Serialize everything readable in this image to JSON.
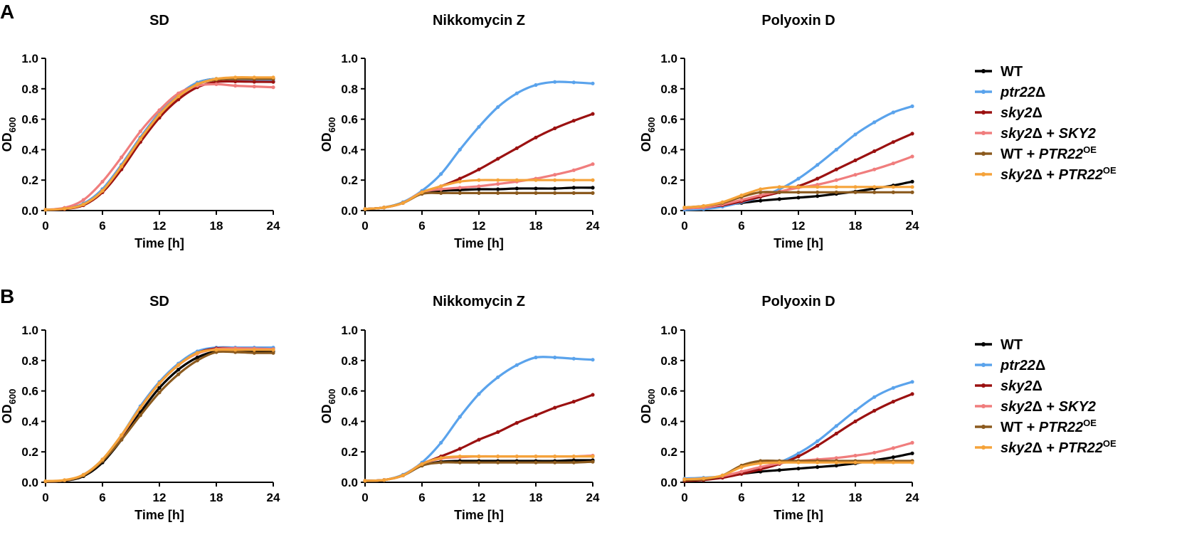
{
  "figure": {
    "panels": [
      {
        "label": "A",
        "legend": [
          {
            "prefix": "WT",
            "italic": "",
            "suffix": "",
            "sup": "",
            "color": "#000000"
          },
          {
            "prefix": "",
            "italic": "ptr22",
            "suffix": "Δ",
            "sup": "",
            "color": "#5aa3ec"
          },
          {
            "prefix": "",
            "italic": "sky2",
            "suffix": "Δ",
            "sup": "",
            "color": "#9b1111"
          },
          {
            "prefix": "",
            "italic": "sky2",
            "suffix": "Δ + ",
            "italic2": "SKY2",
            "sup": "",
            "color": "#f07d7d"
          },
          {
            "prefix": "WT + ",
            "italic": "PTR22",
            "suffix": "",
            "sup": "OE",
            "color": "#8b5a1e"
          },
          {
            "prefix": "",
            "italic": "sky2",
            "suffix": "Δ + ",
            "italic2": "PTR22",
            "sup": "OE",
            "color": "#f5a33a"
          }
        ]
      },
      {
        "label": "B",
        "legend": [
          {
            "prefix": "WT",
            "italic": "",
            "suffix": "",
            "sup": "",
            "color": "#000000"
          },
          {
            "prefix": "",
            "italic": "ptr22",
            "suffix": "Δ",
            "sup": "",
            "color": "#5aa3ec"
          },
          {
            "prefix": "",
            "italic": "sky2",
            "suffix": "Δ",
            "sup": "",
            "color": "#9b1111"
          },
          {
            "prefix": "",
            "italic": "sky2",
            "suffix": "Δ + ",
            "italic2": "SKY2",
            "sup": "",
            "color": "#f07d7d"
          },
          {
            "prefix": "WT + ",
            "italic": "PTR22",
            "suffix": "",
            "sup": "OE",
            "color": "#8b5a1e"
          },
          {
            "prefix": "",
            "italic": "sky2",
            "suffix": "Δ + ",
            "italic2": "PTR22",
            "sup": "OE",
            "color": "#f5a33a"
          }
        ]
      }
    ]
  },
  "chart_data": [
    {
      "panel": "A",
      "type": "line",
      "title": "SD",
      "xlabel": "Time [h]",
      "ylabel": "OD",
      "ylabel_sub": "600",
      "xlim": [
        0,
        24
      ],
      "ylim": [
        0,
        1.0
      ],
      "xticks": [
        "0",
        "6",
        "12",
        "18",
        "24"
      ],
      "yticks": [
        "0.0",
        "0.2",
        "0.4",
        "0.6",
        "0.8",
        "1.0"
      ],
      "x": [
        0,
        2,
        4,
        6,
        8,
        10,
        12,
        14,
        16,
        18,
        20,
        22,
        24
      ],
      "series": [
        {
          "name": "WT",
          "values": [
            0.005,
            0.012,
            0.045,
            0.14,
            0.3,
            0.48,
            0.64,
            0.76,
            0.84,
            0.865,
            0.86,
            0.855,
            0.85
          ]
        },
        {
          "name": "ptr22Δ",
          "values": [
            0.005,
            0.012,
            0.045,
            0.14,
            0.3,
            0.48,
            0.64,
            0.76,
            0.84,
            0.865,
            0.86,
            0.855,
            0.85
          ]
        },
        {
          "name": "sky2Δ",
          "values": [
            0.005,
            0.01,
            0.035,
            0.12,
            0.27,
            0.45,
            0.61,
            0.73,
            0.81,
            0.845,
            0.848,
            0.846,
            0.845
          ]
        },
        {
          "name": "sky2Δ + SKY2",
          "values": [
            0.005,
            0.018,
            0.07,
            0.19,
            0.35,
            0.52,
            0.66,
            0.77,
            0.82,
            0.83,
            0.82,
            0.815,
            0.81
          ]
        },
        {
          "name": "WT + PTR22OE",
          "values": [
            0.005,
            0.012,
            0.04,
            0.13,
            0.29,
            0.47,
            0.63,
            0.75,
            0.83,
            0.86,
            0.865,
            0.865,
            0.865
          ]
        },
        {
          "name": "sky2Δ + PTR22OE",
          "values": [
            0.005,
            0.012,
            0.04,
            0.13,
            0.29,
            0.47,
            0.63,
            0.75,
            0.83,
            0.865,
            0.875,
            0.875,
            0.875
          ]
        }
      ]
    },
    {
      "panel": "A",
      "type": "line",
      "title": "Nikkomycin Z",
      "xlabel": "Time [h]",
      "ylabel": "OD",
      "ylabel_sub": "600",
      "xlim": [
        0,
        24
      ],
      "ylim": [
        0,
        1.0
      ],
      "xticks": [
        "0",
        "6",
        "12",
        "18",
        "24"
      ],
      "yticks": [
        "0.0",
        "0.2",
        "0.4",
        "0.6",
        "0.8",
        "1.0"
      ],
      "x": [
        0,
        2,
        4,
        6,
        8,
        10,
        12,
        14,
        16,
        18,
        20,
        22,
        24
      ],
      "series": [
        {
          "name": "WT",
          "values": [
            0.01,
            0.02,
            0.05,
            0.115,
            0.13,
            0.135,
            0.14,
            0.14,
            0.145,
            0.145,
            0.145,
            0.15,
            0.15
          ]
        },
        {
          "name": "ptr22Δ",
          "values": [
            0.01,
            0.02,
            0.055,
            0.13,
            0.24,
            0.4,
            0.55,
            0.68,
            0.77,
            0.825,
            0.845,
            0.842,
            0.835
          ]
        },
        {
          "name": "sky2Δ",
          "values": [
            0.01,
            0.02,
            0.05,
            0.12,
            0.16,
            0.21,
            0.27,
            0.34,
            0.41,
            0.48,
            0.54,
            0.59,
            0.635
          ]
        },
        {
          "name": "sky2Δ + SKY2",
          "values": [
            0.01,
            0.02,
            0.05,
            0.12,
            0.14,
            0.15,
            0.16,
            0.175,
            0.19,
            0.21,
            0.235,
            0.265,
            0.305
          ]
        },
        {
          "name": "WT + PTR22OE",
          "values": [
            0.01,
            0.02,
            0.05,
            0.11,
            0.115,
            0.115,
            0.115,
            0.115,
            0.115,
            0.115,
            0.115,
            0.115,
            0.115
          ]
        },
        {
          "name": "sky2Δ + PTR22OE",
          "values": [
            0.01,
            0.02,
            0.05,
            0.12,
            0.16,
            0.19,
            0.2,
            0.2,
            0.2,
            0.2,
            0.2,
            0.2,
            0.2
          ]
        }
      ]
    },
    {
      "panel": "A",
      "type": "line",
      "title": "Polyoxin D",
      "xlabel": "Time [h]",
      "ylabel": "OD",
      "ylabel_sub": "600",
      "xlim": [
        0,
        24
      ],
      "ylim": [
        0,
        1.0
      ],
      "xticks": [
        "0",
        "6",
        "12",
        "18",
        "24"
      ],
      "yticks": [
        "0.0",
        "0.2",
        "0.4",
        "0.6",
        "0.8",
        "1.0"
      ],
      "x": [
        0,
        2,
        4,
        6,
        8,
        10,
        12,
        14,
        16,
        18,
        20,
        22,
        24
      ],
      "series": [
        {
          "name": "WT",
          "values": [
            0.02,
            0.025,
            0.035,
            0.05,
            0.065,
            0.075,
            0.085,
            0.095,
            0.11,
            0.125,
            0.145,
            0.165,
            0.19
          ]
        },
        {
          "name": "ptr22Δ",
          "values": [
            0.005,
            0.01,
            0.025,
            0.055,
            0.09,
            0.14,
            0.21,
            0.3,
            0.4,
            0.5,
            0.58,
            0.645,
            0.685
          ]
        },
        {
          "name": "sky2Δ",
          "values": [
            0.015,
            0.02,
            0.035,
            0.06,
            0.09,
            0.12,
            0.16,
            0.21,
            0.27,
            0.33,
            0.39,
            0.45,
            0.505
          ]
        },
        {
          "name": "sky2Δ + SKY2",
          "values": [
            0.015,
            0.02,
            0.04,
            0.07,
            0.1,
            0.125,
            0.15,
            0.17,
            0.2,
            0.235,
            0.27,
            0.31,
            0.355
          ]
        },
        {
          "name": "WT + PTR22OE",
          "values": [
            0.02,
            0.03,
            0.05,
            0.09,
            0.12,
            0.12,
            0.12,
            0.12,
            0.12,
            0.12,
            0.12,
            0.12,
            0.12
          ]
        },
        {
          "name": "sky2Δ + PTR22OE",
          "values": [
            0.02,
            0.03,
            0.055,
            0.1,
            0.14,
            0.155,
            0.155,
            0.155,
            0.155,
            0.155,
            0.155,
            0.155,
            0.155
          ]
        }
      ]
    },
    {
      "panel": "B",
      "type": "line",
      "title": "SD",
      "xlabel": "Time [h]",
      "ylabel": "OD",
      "ylabel_sub": "600",
      "xlim": [
        0,
        24
      ],
      "ylim": [
        0,
        1.0
      ],
      "xticks": [
        "0",
        "6",
        "12",
        "18",
        "24"
      ],
      "yticks": [
        "0.0",
        "0.2",
        "0.4",
        "0.6",
        "0.8",
        "1.0"
      ],
      "x": [
        0,
        2,
        4,
        6,
        8,
        10,
        12,
        14,
        16,
        18,
        20,
        22,
        24
      ],
      "series": [
        {
          "name": "WT",
          "values": [
            0.005,
            0.01,
            0.04,
            0.13,
            0.28,
            0.46,
            0.62,
            0.74,
            0.82,
            0.86,
            0.86,
            0.86,
            0.86
          ]
        },
        {
          "name": "ptr22Δ",
          "values": [
            0.005,
            0.012,
            0.05,
            0.15,
            0.31,
            0.5,
            0.66,
            0.78,
            0.86,
            0.885,
            0.885,
            0.885,
            0.885
          ]
        },
        {
          "name": "sky2Δ",
          "values": [
            0.005,
            0.012,
            0.048,
            0.148,
            0.305,
            0.49,
            0.65,
            0.77,
            0.85,
            0.88,
            0.88,
            0.878,
            0.875
          ]
        },
        {
          "name": "sky2Δ + SKY2",
          "values": [
            0.005,
            0.012,
            0.048,
            0.148,
            0.305,
            0.49,
            0.65,
            0.77,
            0.845,
            0.875,
            0.88,
            0.878,
            0.875
          ]
        },
        {
          "name": "WT + PTR22OE",
          "values": [
            0.005,
            0.012,
            0.045,
            0.14,
            0.28,
            0.44,
            0.59,
            0.71,
            0.8,
            0.855,
            0.855,
            0.85,
            0.85
          ]
        },
        {
          "name": "sky2Δ + PTR22OE",
          "values": [
            0.008,
            0.015,
            0.05,
            0.15,
            0.31,
            0.49,
            0.65,
            0.77,
            0.85,
            0.87,
            0.87,
            0.87,
            0.87
          ]
        }
      ]
    },
    {
      "panel": "B",
      "type": "line",
      "title": "Nikkomycin Z",
      "xlabel": "Time [h]",
      "ylabel": "OD",
      "ylabel_sub": "600",
      "xlim": [
        0,
        24
      ],
      "ylim": [
        0,
        1.0
      ],
      "xticks": [
        "0",
        "6",
        "12",
        "18",
        "24"
      ],
      "yticks": [
        "0.0",
        "0.2",
        "0.4",
        "0.6",
        "0.8",
        "1.0"
      ],
      "x": [
        0,
        2,
        4,
        6,
        8,
        10,
        12,
        14,
        16,
        18,
        20,
        22,
        24
      ],
      "series": [
        {
          "name": "WT",
          "values": [
            0.01,
            0.015,
            0.045,
            0.11,
            0.135,
            0.14,
            0.14,
            0.14,
            0.14,
            0.14,
            0.14,
            0.145,
            0.145
          ]
        },
        {
          "name": "ptr22Δ",
          "values": [
            0.01,
            0.015,
            0.05,
            0.13,
            0.26,
            0.43,
            0.58,
            0.69,
            0.77,
            0.82,
            0.82,
            0.812,
            0.805
          ]
        },
        {
          "name": "sky2Δ",
          "values": [
            0.01,
            0.015,
            0.045,
            0.12,
            0.17,
            0.22,
            0.28,
            0.33,
            0.39,
            0.44,
            0.49,
            0.53,
            0.575
          ]
        },
        {
          "name": "sky2Δ + SKY2",
          "values": [
            0.01,
            0.015,
            0.045,
            0.12,
            0.155,
            0.165,
            0.17,
            0.17,
            0.17,
            0.17,
            0.17,
            0.17,
            0.175
          ]
        },
        {
          "name": "WT + PTR22OE",
          "values": [
            0.01,
            0.015,
            0.045,
            0.11,
            0.13,
            0.13,
            0.13,
            0.13,
            0.13,
            0.13,
            0.13,
            0.13,
            0.135
          ]
        },
        {
          "name": "sky2Δ + PTR22OE",
          "values": [
            0.01,
            0.015,
            0.045,
            0.12,
            0.16,
            0.17,
            0.17,
            0.17,
            0.17,
            0.17,
            0.17,
            0.17,
            0.17
          ]
        }
      ]
    },
    {
      "panel": "B",
      "type": "line",
      "title": "Polyoxin D",
      "xlabel": "Time [h]",
      "ylabel": "OD",
      "ylabel_sub": "600",
      "xlim": [
        0,
        24
      ],
      "ylim": [
        0,
        1.0
      ],
      "xticks": [
        "0",
        "6",
        "12",
        "18",
        "24"
      ],
      "yticks": [
        "0.0",
        "0.2",
        "0.4",
        "0.6",
        "0.8",
        "1.0"
      ],
      "x": [
        0,
        2,
        4,
        6,
        8,
        10,
        12,
        14,
        16,
        18,
        20,
        22,
        24
      ],
      "series": [
        {
          "name": "WT",
          "values": [
            0.02,
            0.025,
            0.035,
            0.055,
            0.07,
            0.08,
            0.09,
            0.1,
            0.11,
            0.125,
            0.145,
            0.165,
            0.19
          ]
        },
        {
          "name": "ptr22Δ",
          "values": [
            0.025,
            0.03,
            0.04,
            0.065,
            0.09,
            0.13,
            0.19,
            0.27,
            0.37,
            0.47,
            0.56,
            0.62,
            0.66
          ]
        },
        {
          "name": "sky2Δ",
          "values": [
            0.01,
            0.015,
            0.03,
            0.055,
            0.085,
            0.12,
            0.17,
            0.24,
            0.32,
            0.4,
            0.47,
            0.53,
            0.58
          ]
        },
        {
          "name": "sky2Δ + SKY2",
          "values": [
            0.02,
            0.025,
            0.04,
            0.07,
            0.1,
            0.125,
            0.14,
            0.15,
            0.16,
            0.175,
            0.195,
            0.225,
            0.26
          ]
        },
        {
          "name": "WT + PTR22OE",
          "values": [
            0.015,
            0.02,
            0.045,
            0.11,
            0.14,
            0.14,
            0.14,
            0.14,
            0.14,
            0.14,
            0.14,
            0.14,
            0.14
          ]
        },
        {
          "name": "sky2Δ + PTR22OE",
          "values": [
            0.02,
            0.025,
            0.045,
            0.1,
            0.125,
            0.13,
            0.13,
            0.13,
            0.13,
            0.13,
            0.13,
            0.13,
            0.13
          ]
        }
      ]
    }
  ]
}
